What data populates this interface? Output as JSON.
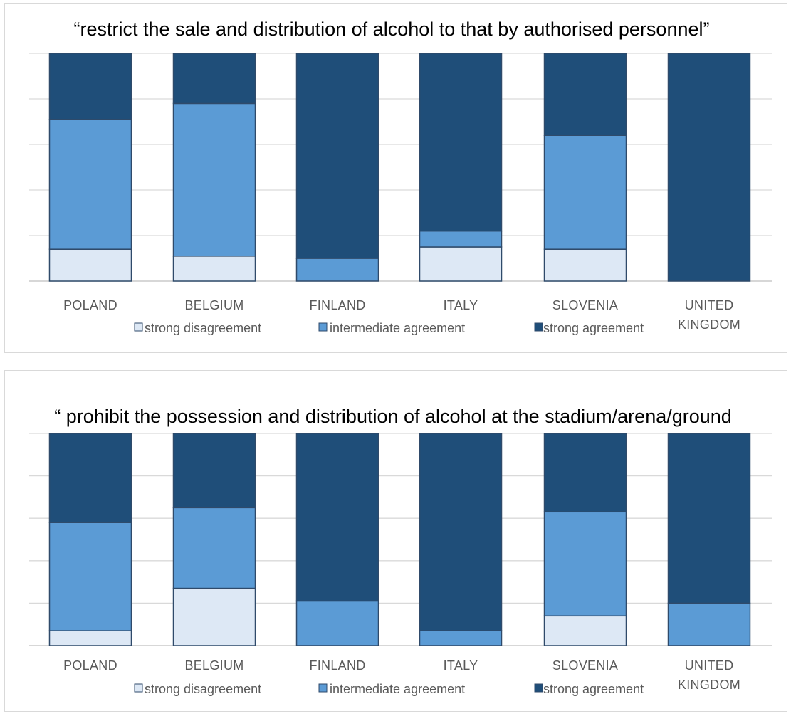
{
  "colors": {
    "strong_disagreement": "#dde8f5",
    "intermediate_agreement": "#5b9bd5",
    "strong_agreement": "#1f4e79",
    "bar_outline": "#2f4a6a",
    "gridline": "#d9d9d9",
    "axis_line": "#bfbfbf"
  },
  "chart_data": [
    {
      "type": "bar",
      "stacked": true,
      "normalized": true,
      "title": "“restrict the sale and distribution  of alcohol to that by authorised personnel”",
      "categories": [
        [
          "POLAND"
        ],
        [
          "BELGIUM"
        ],
        [
          "FINLAND"
        ],
        [
          "ITALY"
        ],
        [
          "SLOVENIA"
        ],
        [
          "UNITED",
          "KINGDOM"
        ]
      ],
      "series": [
        {
          "name": "strong disagreement",
          "values": [
            14,
            11,
            0,
            15,
            14,
            0
          ]
        },
        {
          "name": "intermediate agreement",
          "values": [
            57,
            67,
            10,
            7,
            50,
            0
          ]
        },
        {
          "name": "strong agreement",
          "values": [
            29,
            22,
            90,
            78,
            36,
            100
          ]
        }
      ],
      "ylim": [
        0,
        100
      ],
      "grid": true,
      "legend": "bottom"
    },
    {
      "type": "bar",
      "stacked": true,
      "normalized": true,
      "title": "“ prohibit the possession and distribution  of alcohol at the stadium/arena/ground",
      "categories": [
        [
          "POLAND"
        ],
        [
          "BELGIUM"
        ],
        [
          "FINLAND"
        ],
        [
          "ITALY"
        ],
        [
          "SLOVENIA"
        ],
        [
          "UNITED",
          "KINGDOM"
        ]
      ],
      "series": [
        {
          "name": "strong disagreement",
          "values": [
            7,
            27,
            0,
            0,
            14,
            0
          ]
        },
        {
          "name": "intermediate agreement",
          "values": [
            51,
            38,
            21,
            7,
            49,
            20
          ]
        },
        {
          "name": "strong agreement",
          "values": [
            42,
            35,
            79,
            93,
            37,
            80
          ]
        }
      ],
      "ylim": [
        0,
        100
      ],
      "grid": true,
      "legend": "bottom"
    }
  ]
}
